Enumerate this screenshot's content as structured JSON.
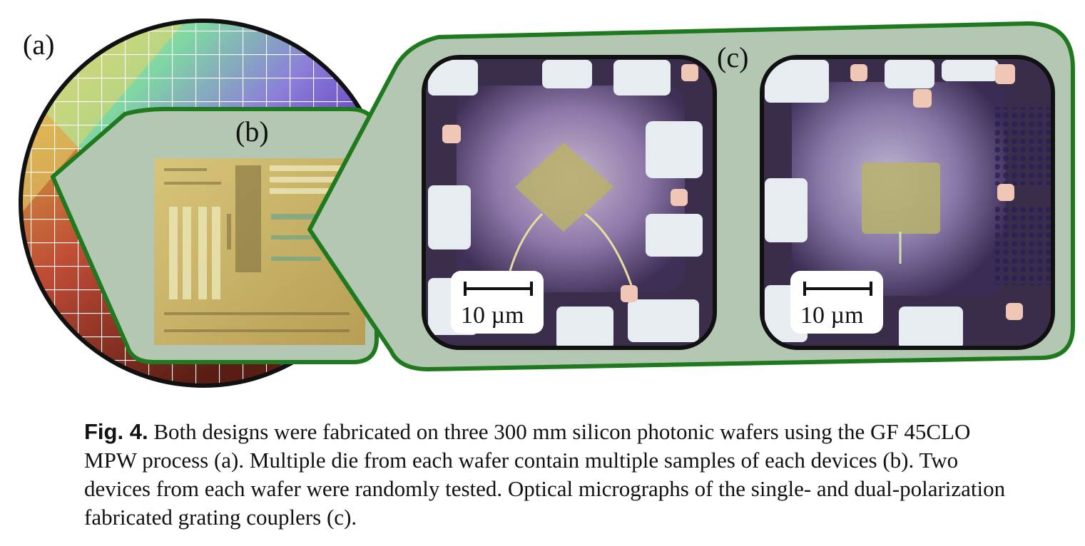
{
  "figure": {
    "panel_labels": {
      "a": "(a)",
      "b": "(b)",
      "c": "(c)"
    },
    "scale_bars": [
      {
        "text": "10 µm"
      },
      {
        "text": "10 µm"
      }
    ],
    "colors": {
      "frame_green": "#1f7a1f",
      "panel_fill": "#b4c7b3",
      "outline": "#111111"
    }
  },
  "caption": {
    "label": "Fig. 4.",
    "text": " Both designs were fabricated on three 300 mm silicon photonic wafers using the GF 45CLO MPW process (a). Multiple die from each wafer contain multiple samples of each devices (b). Two devices from each wafer were randomly tested. Optical micrographs of the single- and dual-polarization fabricated grating couplers (c)."
  }
}
